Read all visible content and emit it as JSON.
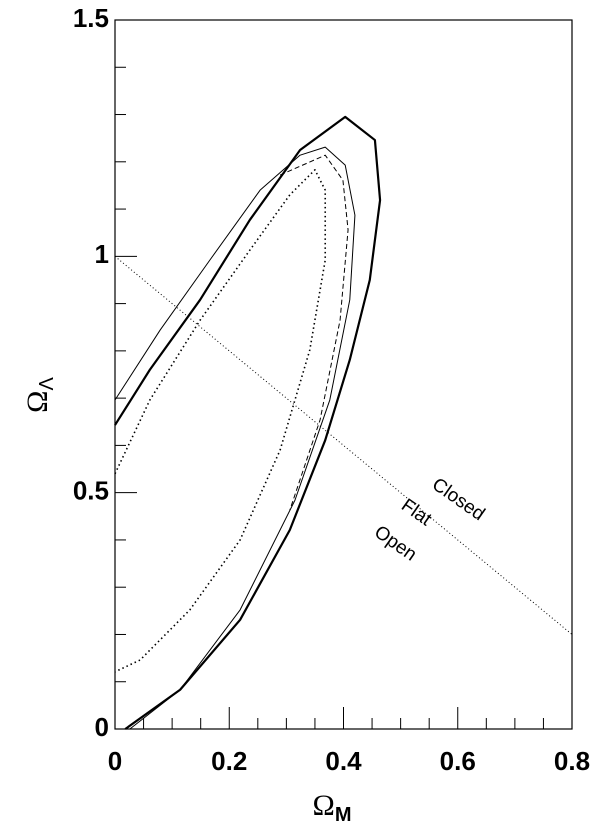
{
  "chart_data": {
    "type": "line",
    "xlabel": "Ω",
    "xlabel_sub": "M",
    "ylabel": "Ω",
    "ylabel_sub": "Λ",
    "xlim": [
      0,
      0.8
    ],
    "ylim": [
      0,
      1.5
    ],
    "xticks": [
      0,
      0.2,
      0.4,
      0.6,
      0.8
    ],
    "yticks": [
      0,
      0.5,
      1,
      1.5
    ],
    "xminorticks": [
      0.05,
      0.1,
      0.15,
      0.25,
      0.3,
      0.35,
      0.45,
      0.5,
      0.55,
      0.65,
      0.7,
      0.75
    ],
    "yminorticks": [
      0.1,
      0.2,
      0.3,
      0.4,
      0.6,
      0.7,
      0.8,
      0.9,
      1.1,
      1.2,
      1.3,
      1.4
    ],
    "annotations": [
      "Closed",
      "Flat",
      "Open"
    ],
    "series": [
      {
        "style": "thick",
        "color": "#000000",
        "x": [
          0,
          0.061,
          0.149,
          0.236,
          0.324,
          0.403,
          0.455,
          0.464,
          0.446,
          0.411,
          0.368,
          0.306,
          0.219,
          0.114,
          0.018
        ],
        "y": [
          0.643,
          0.76,
          0.908,
          1.077,
          1.225,
          1.295,
          1.246,
          1.119,
          0.95,
          0.781,
          0.611,
          0.421,
          0.231,
          0.083,
          0
        ]
      },
      {
        "style": "thin",
        "color": "#000000",
        "x": [
          0,
          0.079,
          0.166,
          0.254,
          0.324,
          0.368,
          0.403,
          0.42,
          0.411,
          0.376,
          0.315,
          0.219,
          0.114,
          0.026
        ],
        "y": [
          0.696,
          0.844,
          0.992,
          1.14,
          1.214,
          1.231,
          1.193,
          1.087,
          0.908,
          0.696,
          0.484,
          0.252,
          0.083,
          0
        ]
      },
      {
        "style": "dashed",
        "color": "#000000",
        "x": [
          0.289,
          0.368,
          0.399,
          0.408,
          0.394,
          0.359,
          0.306
        ],
        "y": [
          1.172,
          1.214,
          1.161,
          1.056,
          0.865,
          0.654,
          0.463
        ]
      },
      {
        "style": "dotted",
        "color": "#000000",
        "x": [
          0,
          0.061,
          0.149,
          0.236,
          0.306,
          0.35,
          0.368,
          0.368,
          0.341,
          0.289,
          0.219,
          0.131,
          0.044,
          0
        ],
        "y": [
          0.54,
          0.696,
          0.865,
          1.013,
          1.13,
          1.183,
          1.14,
          0.992,
          0.802,
          0.59,
          0.4,
          0.252,
          0.146,
          0.121
        ]
      },
      {
        "style": "flat-line",
        "color": "#000000",
        "x": [
          0,
          0.8
        ],
        "y": [
          1,
          0.2
        ]
      }
    ]
  }
}
